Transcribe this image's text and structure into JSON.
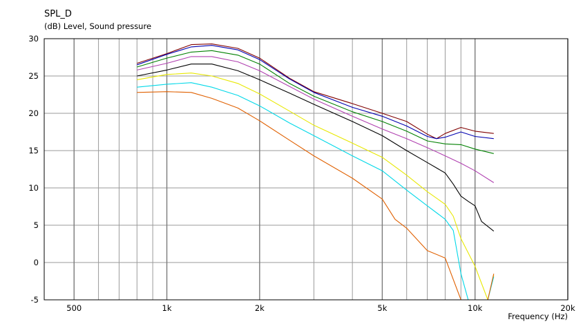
{
  "chart_data": {
    "type": "line",
    "title": "SPL_D",
    "ylabel": "(dB)  Level, Sound pressure",
    "xlabel": "Frequency  (Hz)",
    "x_scale": "log",
    "xlim": [
      400,
      20000
    ],
    "ylim": [
      -5,
      30
    ],
    "grid": true,
    "x_ticks": [
      {
        "value": 500,
        "label": "500"
      },
      {
        "value": 1000,
        "label": "1k"
      },
      {
        "value": 2000,
        "label": "2k"
      },
      {
        "value": 5000,
        "label": "5k"
      },
      {
        "value": 10000,
        "label": "10k"
      },
      {
        "value": 20000,
        "label": "20k"
      }
    ],
    "x_minor_grid": [
      600,
      700,
      800,
      900,
      3000,
      4000,
      6000,
      7000,
      8000,
      9000
    ],
    "y_ticks": [
      30,
      25,
      20,
      15,
      10,
      5,
      0,
      -5
    ],
    "series": [
      {
        "color": "#800000",
        "x": [
          800,
          1000,
          1200,
          1400,
          1700,
          2000,
          2500,
          3000,
          4000,
          5000,
          6000,
          7000,
          7500,
          8000,
          9000,
          10000,
          11500
        ],
        "y": [
          26.7,
          28.0,
          29.2,
          29.3,
          28.7,
          27.4,
          24.7,
          22.9,
          21.3,
          20.0,
          18.9,
          17.2,
          16.6,
          17.3,
          18.1,
          17.6,
          17.3
        ]
      },
      {
        "color": "#0000b0",
        "x": [
          800,
          1000,
          1200,
          1400,
          1700,
          2000,
          2500,
          3000,
          4000,
          5000,
          6000,
          7000,
          7500,
          8000,
          9000,
          10000,
          11500
        ],
        "y": [
          26.5,
          27.9,
          28.9,
          29.1,
          28.5,
          27.2,
          24.6,
          22.8,
          20.8,
          19.6,
          18.3,
          16.9,
          16.6,
          16.8,
          17.5,
          16.9,
          16.6
        ]
      },
      {
        "color": "#008000",
        "x": [
          800,
          1000,
          1200,
          1400,
          1700,
          2000,
          2500,
          3000,
          4000,
          5000,
          6000,
          7000,
          8000,
          9000,
          10000,
          11500
        ],
        "y": [
          26.2,
          27.4,
          28.2,
          28.4,
          27.8,
          26.6,
          24.0,
          22.3,
          20.2,
          18.9,
          17.6,
          16.3,
          15.9,
          15.8,
          15.2,
          14.6
        ]
      },
      {
        "color": "#b040b0",
        "x": [
          800,
          1000,
          1200,
          1400,
          1700,
          2000,
          2500,
          3000,
          4000,
          5000,
          6000,
          7000,
          8000,
          9000,
          10000,
          11500
        ],
        "y": [
          25.8,
          26.7,
          27.6,
          27.6,
          26.9,
          25.7,
          23.6,
          21.9,
          19.6,
          17.9,
          16.6,
          15.4,
          14.3,
          13.3,
          12.3,
          10.7
        ]
      },
      {
        "color": "#000000",
        "x": [
          800,
          1000,
          1200,
          1400,
          1700,
          2000,
          2500,
          3000,
          4000,
          5000,
          6000,
          7000,
          8000,
          8500,
          9000,
          9500,
          10000,
          10500,
          11500
        ],
        "y": [
          25.0,
          25.8,
          26.6,
          26.6,
          25.7,
          24.5,
          22.7,
          21.2,
          18.9,
          17.0,
          15.0,
          13.4,
          12.0,
          10.5,
          8.9,
          8.2,
          7.6,
          5.5,
          4.2
        ]
      },
      {
        "color": "#e8e800",
        "x": [
          800,
          1000,
          1200,
          1400,
          1700,
          2000,
          2500,
          3000,
          4000,
          5000,
          6000,
          7000,
          8000,
          8500,
          9000,
          10000,
          11000,
          11500
        ],
        "y": [
          24.5,
          25.2,
          25.4,
          25.0,
          24.0,
          22.6,
          20.3,
          18.4,
          16.0,
          14.1,
          11.7,
          9.5,
          7.8,
          6.2,
          3.2,
          -0.5,
          -5.0,
          -1.7
        ]
      },
      {
        "color": "#00d8e8",
        "x": [
          800,
          1000,
          1200,
          1400,
          1700,
          2000,
          2500,
          3000,
          4000,
          5000,
          6000,
          7000,
          8000,
          8500,
          9000,
          9500,
          10000,
          11000,
          11500
        ],
        "y": [
          23.5,
          23.9,
          24.1,
          23.5,
          22.4,
          21.0,
          18.7,
          17.0,
          14.3,
          12.3,
          9.7,
          7.6,
          5.8,
          4.3,
          -1.5,
          -5.0,
          -5.0,
          -5.0,
          -1.9
        ]
      },
      {
        "color": "#e06000",
        "x": [
          800,
          1000,
          1200,
          1400,
          1700,
          2000,
          2500,
          3000,
          4000,
          5000,
          5500,
          6000,
          7000,
          8000,
          9000,
          10000,
          11000,
          11500
        ],
        "y": [
          22.8,
          22.9,
          22.8,
          22.0,
          20.7,
          19.0,
          16.4,
          14.3,
          11.3,
          8.5,
          5.8,
          4.6,
          1.6,
          0.6,
          -5.0,
          -5.0,
          -5.0,
          -1.5
        ]
      }
    ]
  }
}
